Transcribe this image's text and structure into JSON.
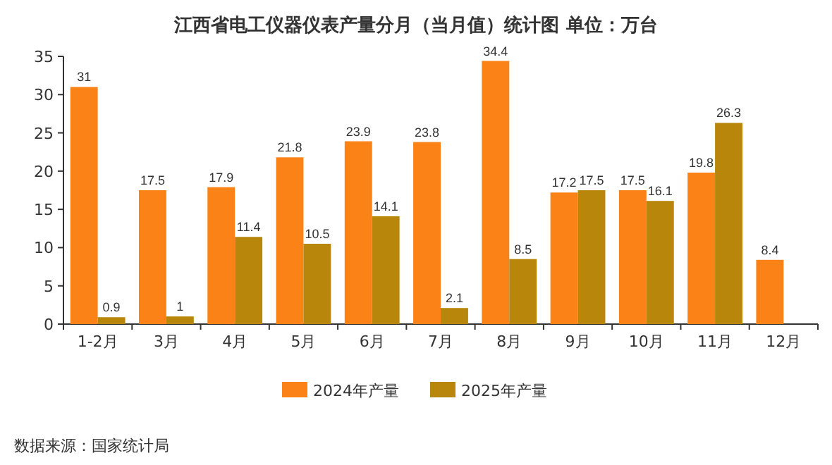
{
  "chart_data": {
    "type": "bar",
    "title": "江西省电工仪器仪表产量分月（当月值）统计图 单位：万台",
    "categories": [
      "1-2月",
      "3月",
      "4月",
      "5月",
      "6月",
      "7月",
      "8月",
      "9月",
      "10月",
      "11月",
      "12月"
    ],
    "series": [
      {
        "name": "2024年产量",
        "color": "#fa8216",
        "values": [
          31,
          17.5,
          17.9,
          21.8,
          23.9,
          23.8,
          34.4,
          17.2,
          17.5,
          19.8,
          8.4
        ]
      },
      {
        "name": "2025年产量",
        "color": "#b8860b",
        "values": [
          0.9,
          1,
          11.4,
          10.5,
          14.1,
          2.1,
          8.5,
          17.5,
          16.1,
          26.3,
          null
        ]
      }
    ],
    "ylim": [
      0,
      35
    ],
    "yticks": [
      0,
      5,
      10,
      15,
      20,
      25,
      30,
      35
    ],
    "data_labels": true,
    "legend": "bottom",
    "annotations": [
      "数据来源：国家统计局"
    ]
  }
}
